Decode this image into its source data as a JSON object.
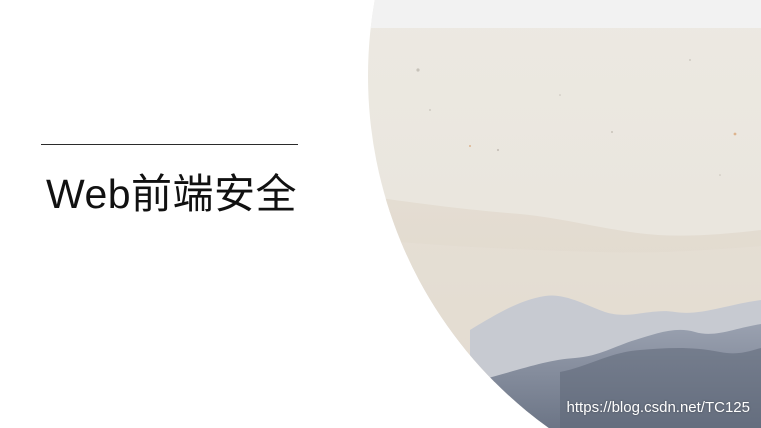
{
  "slide": {
    "title": "Web前端安全",
    "watermark": "https://blog.csdn.net/TC125"
  },
  "colors": {
    "background": "#ffffff",
    "paper": "#ebe7df",
    "top_strip": "#f1f1f1",
    "mountain_light": "#a7adbb",
    "mountain_dark": "#6f7888",
    "text": "#111111"
  }
}
